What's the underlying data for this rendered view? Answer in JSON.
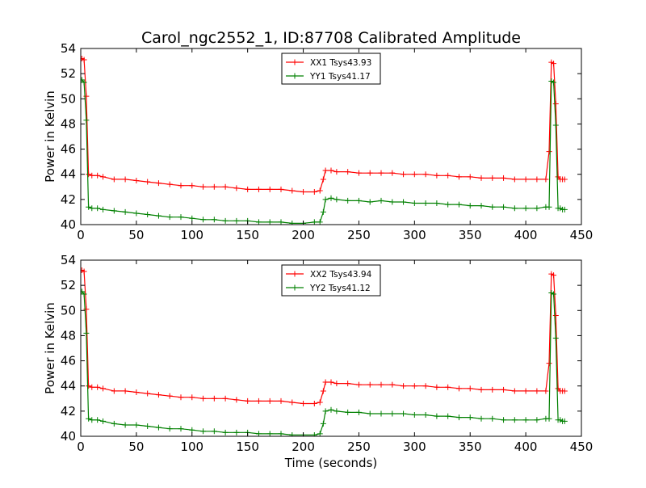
{
  "figure": {
    "title": "Carol_ngc2552_1, ID:87708 Calibrated Amplitude",
    "xlabel": "Time (seconds)"
  },
  "colors": {
    "xx": "#ff0000",
    "yy": "#008000"
  },
  "chart_data": [
    {
      "type": "line",
      "ylabel": "Power in Kelvin",
      "xlim": [
        0,
        450
      ],
      "ylim": [
        40,
        54
      ],
      "xticks": [
        0,
        50,
        100,
        150,
        200,
        250,
        300,
        350,
        400,
        450
      ],
      "yticks": [
        40,
        42,
        44,
        46,
        48,
        50,
        52,
        54
      ],
      "grid": false,
      "legend_position": "top-center",
      "marker": "+",
      "series": [
        {
          "name": "XX1 Tsys43.93",
          "color": "#ff0000",
          "x": [
            1,
            3,
            5,
            7,
            10,
            15,
            20,
            30,
            40,
            50,
            60,
            70,
            80,
            90,
            100,
            110,
            120,
            130,
            140,
            150,
            160,
            170,
            180,
            190,
            200,
            210,
            215,
            218,
            220,
            225,
            230,
            240,
            250,
            260,
            270,
            280,
            290,
            300,
            310,
            320,
            330,
            340,
            350,
            360,
            370,
            380,
            390,
            400,
            410,
            418,
            421,
            423,
            425,
            427,
            429,
            431,
            433,
            435
          ],
          "y": [
            53.2,
            53.1,
            50.2,
            44.0,
            43.9,
            43.9,
            43.8,
            43.6,
            43.6,
            43.5,
            43.4,
            43.3,
            43.2,
            43.1,
            43.1,
            43.0,
            43.0,
            43.0,
            42.9,
            42.8,
            42.8,
            42.8,
            42.8,
            42.7,
            42.6,
            42.6,
            42.7,
            43.6,
            44.3,
            44.3,
            44.2,
            44.2,
            44.1,
            44.1,
            44.1,
            44.1,
            44.0,
            44.0,
            44.0,
            43.9,
            43.9,
            43.8,
            43.8,
            43.7,
            43.7,
            43.7,
            43.6,
            43.6,
            43.6,
            43.6,
            45.8,
            52.9,
            52.8,
            49.6,
            43.8,
            43.6,
            43.6,
            43.6
          ]
        },
        {
          "name": "YY1 Tsys41.17",
          "color": "#008000",
          "x": [
            1,
            3,
            5,
            7,
            10,
            15,
            20,
            30,
            40,
            50,
            60,
            70,
            80,
            90,
            100,
            110,
            120,
            130,
            140,
            150,
            160,
            170,
            180,
            190,
            200,
            210,
            215,
            218,
            220,
            225,
            230,
            240,
            250,
            260,
            270,
            280,
            290,
            300,
            310,
            320,
            330,
            340,
            350,
            360,
            370,
            380,
            390,
            400,
            410,
            418,
            421,
            423,
            425,
            427,
            429,
            431,
            433,
            435
          ],
          "y": [
            51.5,
            51.3,
            48.3,
            41.4,
            41.3,
            41.3,
            41.2,
            41.1,
            41.0,
            40.9,
            40.8,
            40.7,
            40.6,
            40.6,
            40.5,
            40.4,
            40.4,
            40.3,
            40.3,
            40.3,
            40.2,
            40.2,
            40.2,
            40.1,
            40.1,
            40.2,
            40.2,
            41.0,
            42.0,
            42.1,
            42.0,
            41.9,
            41.9,
            41.8,
            41.9,
            41.8,
            41.8,
            41.7,
            41.7,
            41.7,
            41.6,
            41.6,
            41.5,
            41.5,
            41.4,
            41.4,
            41.3,
            41.3,
            41.3,
            41.4,
            41.4,
            51.4,
            51.3,
            47.9,
            41.3,
            41.3,
            41.2,
            41.2
          ]
        }
      ]
    },
    {
      "type": "line",
      "ylabel": "Power in Kelvin",
      "xlim": [
        0,
        450
      ],
      "ylim": [
        40,
        54
      ],
      "xticks": [
        0,
        50,
        100,
        150,
        200,
        250,
        300,
        350,
        400,
        450
      ],
      "yticks": [
        40,
        42,
        44,
        46,
        48,
        50,
        52,
        54
      ],
      "grid": false,
      "legend_position": "top-center",
      "marker": "+",
      "series": [
        {
          "name": "XX2 Tsys43.94",
          "color": "#ff0000",
          "x": [
            1,
            3,
            5,
            7,
            10,
            15,
            20,
            30,
            40,
            50,
            60,
            70,
            80,
            90,
            100,
            110,
            120,
            130,
            140,
            150,
            160,
            170,
            180,
            190,
            200,
            210,
            215,
            218,
            220,
            225,
            230,
            240,
            250,
            260,
            270,
            280,
            290,
            300,
            310,
            320,
            330,
            340,
            350,
            360,
            370,
            380,
            390,
            400,
            410,
            418,
            421,
            423,
            425,
            427,
            429,
            431,
            433,
            435
          ],
          "y": [
            53.2,
            53.1,
            50.1,
            44.0,
            43.9,
            43.9,
            43.8,
            43.6,
            43.6,
            43.5,
            43.4,
            43.3,
            43.2,
            43.1,
            43.1,
            43.0,
            43.0,
            43.0,
            42.9,
            42.8,
            42.8,
            42.8,
            42.8,
            42.7,
            42.6,
            42.6,
            42.7,
            43.6,
            44.3,
            44.3,
            44.2,
            44.2,
            44.1,
            44.1,
            44.1,
            44.1,
            44.0,
            44.0,
            44.0,
            43.9,
            43.9,
            43.8,
            43.8,
            43.7,
            43.7,
            43.7,
            43.6,
            43.6,
            43.6,
            43.6,
            45.8,
            52.9,
            52.8,
            49.6,
            43.8,
            43.6,
            43.6,
            43.6
          ]
        },
        {
          "name": "YY2 Tsys41.12",
          "color": "#008000",
          "x": [
            1,
            3,
            5,
            7,
            10,
            15,
            20,
            30,
            40,
            50,
            60,
            70,
            80,
            90,
            100,
            110,
            120,
            130,
            140,
            150,
            160,
            170,
            180,
            190,
            200,
            210,
            215,
            218,
            220,
            225,
            230,
            240,
            250,
            260,
            270,
            280,
            290,
            300,
            310,
            320,
            330,
            340,
            350,
            360,
            370,
            380,
            390,
            400,
            410,
            418,
            421,
            423,
            425,
            427,
            429,
            431,
            433,
            435
          ],
          "y": [
            51.5,
            51.3,
            48.2,
            41.4,
            41.3,
            41.3,
            41.2,
            41.0,
            40.9,
            40.9,
            40.8,
            40.7,
            40.6,
            40.6,
            40.5,
            40.4,
            40.4,
            40.3,
            40.3,
            40.3,
            40.2,
            40.2,
            40.2,
            40.1,
            40.1,
            40.1,
            40.2,
            41.0,
            42.0,
            42.1,
            42.0,
            41.9,
            41.9,
            41.8,
            41.8,
            41.8,
            41.8,
            41.7,
            41.7,
            41.6,
            41.6,
            41.5,
            41.5,
            41.4,
            41.4,
            41.3,
            41.3,
            41.3,
            41.3,
            41.4,
            41.4,
            51.4,
            51.3,
            47.8,
            41.3,
            41.3,
            41.2,
            41.2
          ]
        }
      ]
    }
  ]
}
